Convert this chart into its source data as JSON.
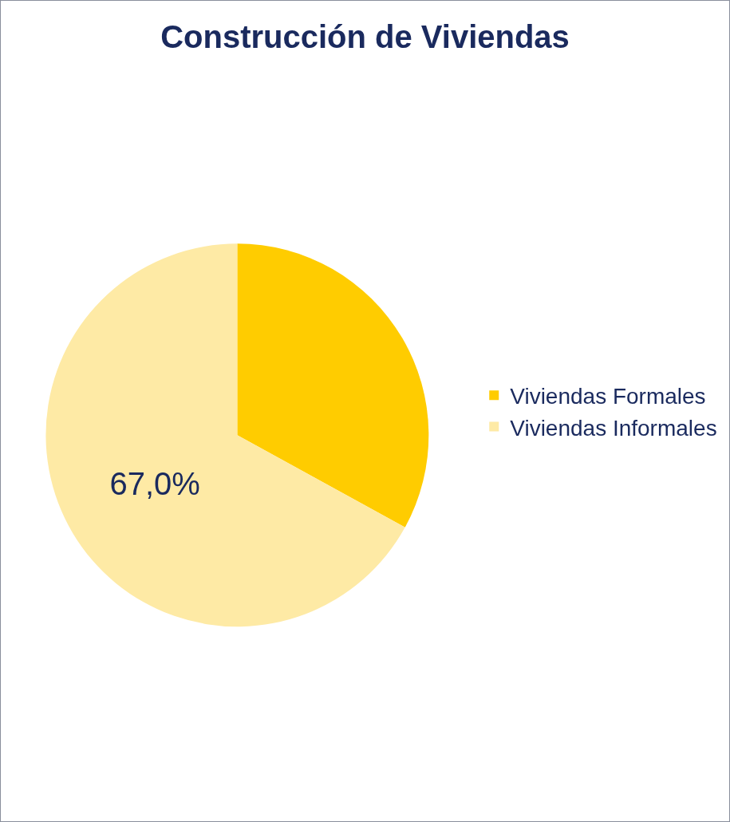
{
  "chart_data": {
    "type": "pie",
    "title": "Construcción de Viviendas",
    "categories": [
      "Viviendas Formales",
      "Viviendas Informales"
    ],
    "values": [
      33.0,
      67.0
    ],
    "colors": [
      "#ffcc00",
      "#feeaa5"
    ],
    "value_labels": [
      null,
      "67,0%"
    ],
    "legend": "right"
  }
}
